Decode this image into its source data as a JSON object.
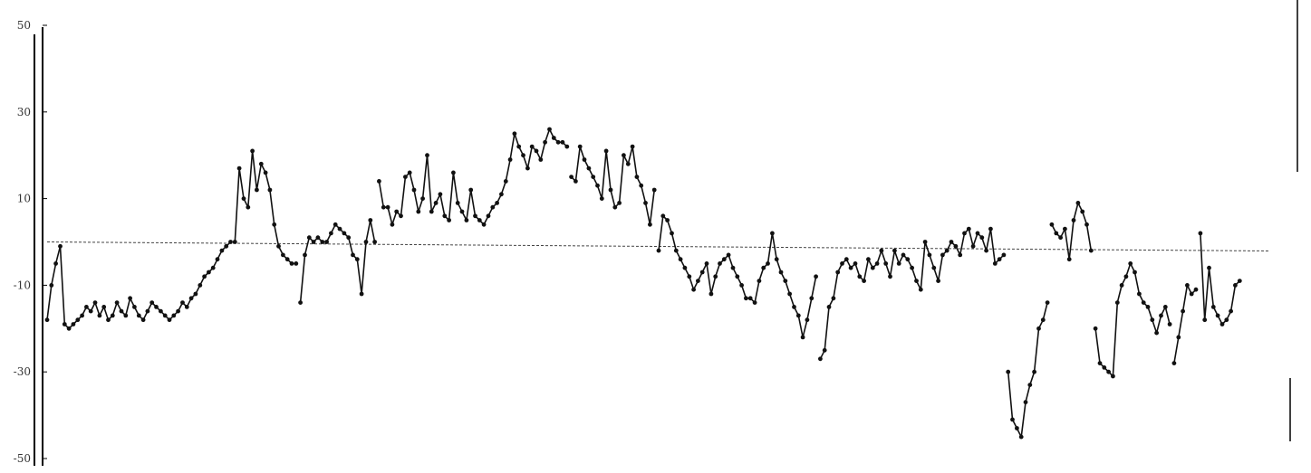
{
  "chart_data": {
    "type": "line",
    "title": "",
    "xlabel": "",
    "ylabel": "",
    "ylim": [
      -50,
      50
    ],
    "xlim": [
      0,
      280
    ],
    "yticks": [
      {
        "value": 50,
        "label": "50"
      },
      {
        "value": 30,
        "label": "30"
      },
      {
        "value": 10,
        "label": "10"
      },
      {
        "value": -10,
        "label": "-10"
      },
      {
        "value": -30,
        "label": "-30"
      },
      {
        "value": -50,
        "label": "-50"
      }
    ],
    "reference_line": 0,
    "grid": false,
    "series": [
      {
        "color": "#111111",
        "points": [
          [
            0,
            -18
          ],
          [
            1,
            -10
          ],
          [
            2,
            -5
          ],
          [
            3,
            -1
          ],
          [
            4,
            -19
          ],
          [
            5,
            -20
          ],
          [
            6,
            -19
          ],
          [
            7,
            -18
          ],
          [
            8,
            -17
          ],
          [
            9,
            -15
          ],
          [
            10,
            -16
          ],
          [
            11,
            -14
          ],
          [
            12,
            -17
          ],
          [
            13,
            -15
          ],
          [
            14,
            -18
          ],
          [
            15,
            -17
          ],
          [
            16,
            -14
          ],
          [
            17,
            -16
          ],
          [
            18,
            -17
          ],
          [
            19,
            -13
          ],
          [
            20,
            -15
          ],
          [
            21,
            -17
          ],
          [
            22,
            -18
          ],
          [
            23,
            -16
          ],
          [
            24,
            -14
          ],
          [
            25,
            -15
          ],
          [
            26,
            -16
          ],
          [
            27,
            -17
          ],
          [
            28,
            -18
          ],
          [
            29,
            -17
          ],
          [
            30,
            -16
          ],
          [
            31,
            -14
          ],
          [
            32,
            -15
          ],
          [
            33,
            -13
          ],
          [
            34,
            -12
          ],
          [
            35,
            -10
          ],
          [
            36,
            -8
          ],
          [
            37,
            -7
          ],
          [
            38,
            -6
          ],
          [
            39,
            -4
          ],
          [
            40,
            -2
          ],
          [
            41,
            -1
          ],
          [
            42,
            0
          ],
          [
            43,
            0
          ],
          [
            44,
            17
          ],
          [
            45,
            10
          ],
          [
            46,
            8
          ],
          [
            47,
            21
          ],
          [
            48,
            12
          ],
          [
            49,
            18
          ],
          [
            50,
            16
          ],
          [
            51,
            12
          ],
          [
            52,
            4
          ],
          [
            53,
            -1
          ],
          [
            54,
            -3
          ],
          [
            55,
            -4
          ],
          [
            56,
            -5
          ],
          [
            57,
            -5
          ],
          [
            58,
            -14
          ],
          [
            59,
            -3
          ],
          [
            60,
            1
          ],
          [
            61,
            0
          ],
          [
            62,
            1
          ],
          [
            63,
            0
          ],
          [
            64,
            0
          ],
          [
            65,
            2
          ],
          [
            66,
            4
          ],
          [
            67,
            3
          ],
          [
            68,
            2
          ],
          [
            69,
            1
          ],
          [
            70,
            -3
          ],
          [
            71,
            -4
          ],
          [
            72,
            -12
          ],
          [
            73,
            0
          ],
          [
            74,
            5
          ],
          [
            75,
            0
          ],
          [
            76,
            14
          ],
          [
            77,
            8
          ],
          [
            78,
            8
          ],
          [
            79,
            4
          ],
          [
            80,
            7
          ],
          [
            81,
            6
          ],
          [
            82,
            15
          ],
          [
            83,
            16
          ],
          [
            84,
            12
          ],
          [
            85,
            7
          ],
          [
            86,
            10
          ],
          [
            87,
            20
          ],
          [
            88,
            7
          ],
          [
            89,
            9
          ],
          [
            90,
            11
          ],
          [
            91,
            6
          ],
          [
            92,
            5
          ],
          [
            93,
            16
          ],
          [
            94,
            9
          ],
          [
            95,
            7
          ],
          [
            96,
            5
          ],
          [
            97,
            12
          ],
          [
            98,
            6
          ],
          [
            99,
            5
          ],
          [
            100,
            4
          ],
          [
            101,
            6
          ],
          [
            102,
            8
          ],
          [
            103,
            9
          ],
          [
            104,
            11
          ],
          [
            105,
            14
          ],
          [
            106,
            19
          ],
          [
            107,
            25
          ],
          [
            108,
            22
          ],
          [
            109,
            20
          ],
          [
            110,
            17
          ],
          [
            111,
            22
          ],
          [
            112,
            21
          ],
          [
            113,
            19
          ],
          [
            114,
            23
          ],
          [
            115,
            26
          ],
          [
            116,
            24
          ],
          [
            117,
            23
          ],
          [
            118,
            23
          ],
          [
            119,
            22
          ],
          [
            120,
            15
          ],
          [
            121,
            14
          ],
          [
            122,
            22
          ],
          [
            123,
            19
          ],
          [
            124,
            17
          ],
          [
            125,
            15
          ],
          [
            126,
            13
          ],
          [
            127,
            10
          ],
          [
            128,
            21
          ],
          [
            129,
            12
          ],
          [
            130,
            8
          ],
          [
            131,
            9
          ],
          [
            132,
            20
          ],
          [
            133,
            18
          ],
          [
            134,
            22
          ],
          [
            135,
            15
          ],
          [
            136,
            13
          ],
          [
            137,
            9
          ],
          [
            138,
            4
          ],
          [
            139,
            12
          ],
          [
            140,
            -2
          ],
          [
            141,
            6
          ],
          [
            142,
            5
          ],
          [
            143,
            2
          ],
          [
            144,
            -2
          ],
          [
            145,
            -4
          ],
          [
            146,
            -6
          ],
          [
            147,
            -8
          ],
          [
            148,
            -11
          ],
          [
            149,
            -9
          ],
          [
            150,
            -7
          ],
          [
            151,
            -5
          ],
          [
            152,
            -12
          ],
          [
            153,
            -8
          ],
          [
            154,
            -5
          ],
          [
            155,
            -4
          ],
          [
            156,
            -3
          ],
          [
            157,
            -6
          ],
          [
            158,
            -8
          ],
          [
            159,
            -10
          ],
          [
            160,
            -13
          ],
          [
            161,
            -13
          ],
          [
            162,
            -14
          ],
          [
            163,
            -9
          ],
          [
            164,
            -6
          ],
          [
            165,
            -5
          ],
          [
            166,
            2
          ],
          [
            167,
            -4
          ],
          [
            168,
            -7
          ],
          [
            169,
            -9
          ],
          [
            170,
            -12
          ],
          [
            171,
            -15
          ],
          [
            172,
            -17
          ],
          [
            173,
            -22
          ],
          [
            174,
            -18
          ],
          [
            175,
            -13
          ],
          [
            176,
            -8
          ],
          [
            177,
            -27
          ],
          [
            178,
            -25
          ],
          [
            179,
            -15
          ],
          [
            180,
            -13
          ],
          [
            181,
            -7
          ],
          [
            182,
            -5
          ],
          [
            183,
            -4
          ],
          [
            184,
            -6
          ],
          [
            185,
            -5
          ],
          [
            186,
            -8
          ],
          [
            187,
            -9
          ],
          [
            188,
            -4
          ],
          [
            189,
            -6
          ],
          [
            190,
            -5
          ],
          [
            191,
            -2
          ],
          [
            192,
            -5
          ],
          [
            193,
            -8
          ],
          [
            194,
            -2
          ],
          [
            195,
            -5
          ],
          [
            196,
            -3
          ],
          [
            197,
            -4
          ],
          [
            198,
            -6
          ],
          [
            199,
            -9
          ],
          [
            200,
            -11
          ],
          [
            201,
            0
          ],
          [
            202,
            -3
          ],
          [
            203,
            -6
          ],
          [
            204,
            -9
          ],
          [
            205,
            -3
          ],
          [
            206,
            -2
          ],
          [
            207,
            0
          ],
          [
            208,
            -1
          ],
          [
            209,
            -3
          ],
          [
            210,
            2
          ],
          [
            211,
            3
          ],
          [
            212,
            -1
          ],
          [
            213,
            2
          ],
          [
            214,
            1
          ],
          [
            215,
            -2
          ],
          [
            216,
            3
          ],
          [
            217,
            -5
          ],
          [
            218,
            -4
          ],
          [
            219,
            -3
          ],
          [
            220,
            -30
          ],
          [
            221,
            -41
          ],
          [
            222,
            -43
          ],
          [
            223,
            -45
          ],
          [
            224,
            -37
          ],
          [
            225,
            -33
          ],
          [
            226,
            -30
          ],
          [
            227,
            -20
          ],
          [
            228,
            -18
          ],
          [
            229,
            -14
          ],
          [
            230,
            4
          ],
          [
            231,
            2
          ],
          [
            232,
            1
          ],
          [
            233,
            3
          ],
          [
            234,
            -4
          ],
          [
            235,
            5
          ],
          [
            236,
            9
          ],
          [
            237,
            7
          ],
          [
            238,
            4
          ],
          [
            239,
            -2
          ],
          [
            240,
            -20
          ],
          [
            241,
            -28
          ],
          [
            242,
            -29
          ],
          [
            243,
            -30
          ],
          [
            244,
            -31
          ],
          [
            245,
            -14
          ],
          [
            246,
            -10
          ],
          [
            247,
            -8
          ],
          [
            248,
            -5
          ],
          [
            249,
            -7
          ],
          [
            250,
            -12
          ],
          [
            251,
            -14
          ],
          [
            252,
            -15
          ],
          [
            253,
            -18
          ],
          [
            254,
            -21
          ],
          [
            255,
            -17
          ],
          [
            256,
            -15
          ],
          [
            257,
            -19
          ],
          [
            258,
            -28
          ],
          [
            259,
            -22
          ],
          [
            260,
            -16
          ],
          [
            261,
            -10
          ],
          [
            262,
            -12
          ],
          [
            263,
            -11
          ],
          [
            264,
            2
          ],
          [
            265,
            -18
          ],
          [
            266,
            -6
          ],
          [
            267,
            -15
          ],
          [
            268,
            -17
          ],
          [
            269,
            -19
          ],
          [
            270,
            -18
          ],
          [
            271,
            -16
          ],
          [
            272,
            -10
          ],
          [
            273,
            -9
          ]
        ],
        "gaps_after": [
          42,
          57,
          75,
          119,
          139,
          176,
          219,
          229,
          239,
          257,
          263
        ]
      }
    ]
  }
}
